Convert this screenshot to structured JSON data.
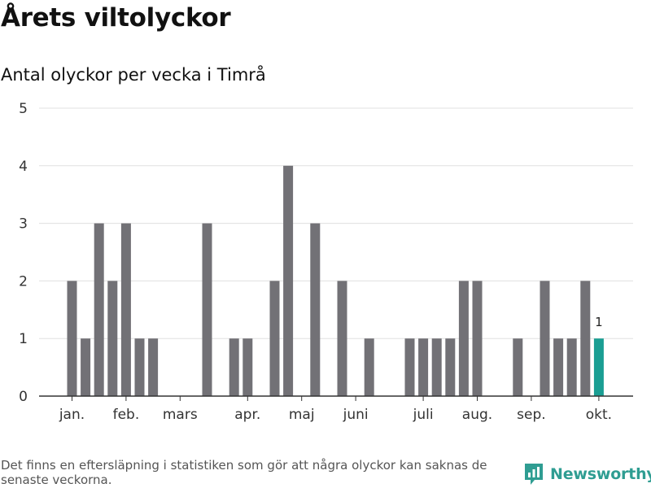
{
  "header": {
    "title": "Årets viltolyckor",
    "subtitle": "Antal olyckor per vecka i Timrå"
  },
  "chart_data": {
    "type": "bar",
    "title": "Årets viltolyckor",
    "subtitle": "Antal olyckor per vecka i Timrå",
    "ylim": [
      0,
      5
    ],
    "yticks": [
      0,
      1,
      2,
      3,
      4,
      5
    ],
    "grid": true,
    "x_month_labels": [
      "jan.",
      "feb.",
      "mars",
      "apr.",
      "maj",
      "juni",
      "juli",
      "aug.",
      "sep.",
      "okt."
    ],
    "weeks": [
      1,
      2,
      3,
      4,
      5,
      6,
      7,
      8,
      9,
      10,
      11,
      12,
      13,
      14,
      15,
      16,
      17,
      18,
      19,
      20,
      21,
      22,
      23,
      24,
      25,
      26,
      27,
      28,
      29,
      30,
      31,
      32,
      33,
      34,
      35,
      36,
      37,
      38,
      39,
      40,
      41
    ],
    "values": [
      2,
      1,
      3,
      2,
      3,
      1,
      1,
      0,
      0,
      0,
      3,
      0,
      1,
      1,
      0,
      2,
      4,
      0,
      3,
      0,
      2,
      0,
      1,
      0,
      0,
      1,
      1,
      1,
      1,
      2,
      2,
      0,
      0,
      1,
      0,
      2,
      1,
      1,
      2,
      1,
      0
    ],
    "highlight_index": 39,
    "highlight_label": "1",
    "colors": {
      "bar": "#727176",
      "highlight": "#1a9e93",
      "grid": "#e0e0e0",
      "axis": "#333333"
    }
  },
  "footer": {
    "note": "Det finns en eftersläpning i statistiken som gör att några olyckor kan saknas de senaste veckorna.",
    "brand": "Newsworthy",
    "brand_icon": "newsworthy-logo-icon"
  }
}
